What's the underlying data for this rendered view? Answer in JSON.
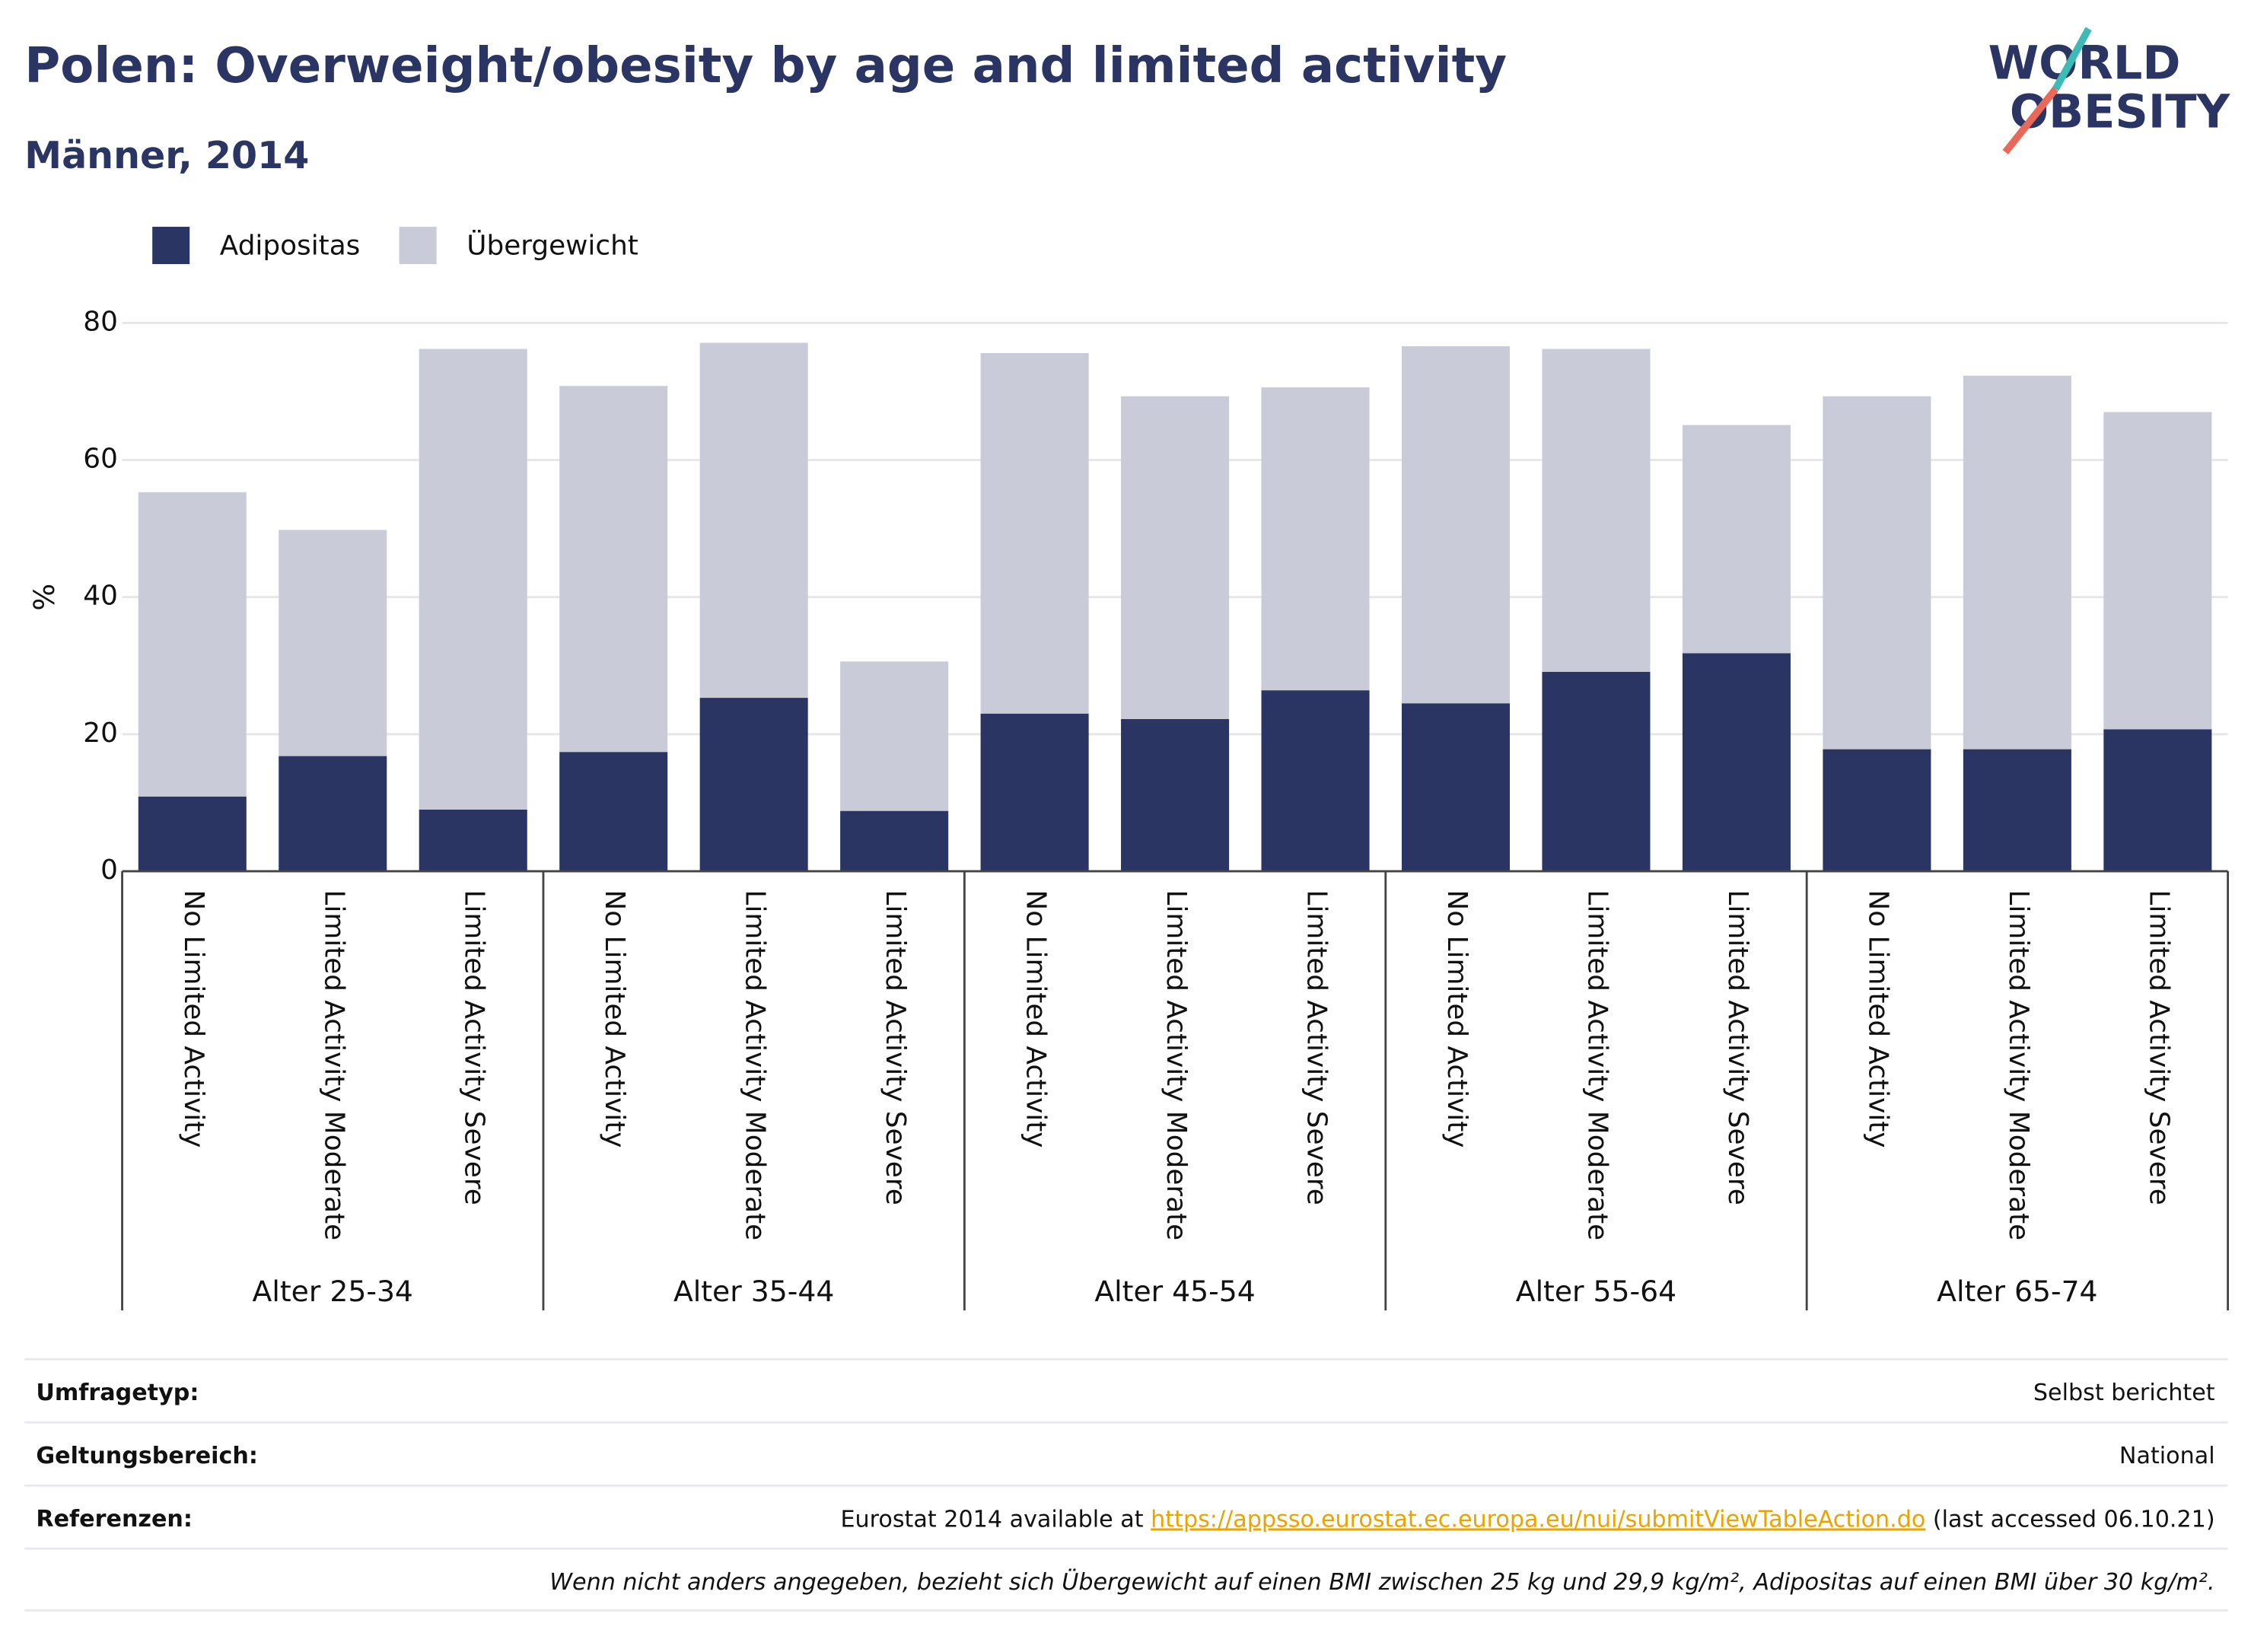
{
  "chart_data": {
    "type": "stacked_bar",
    "title": "Polen: Overweight/obesity by age and limited activity",
    "subtitle": "Männer, 2014",
    "y_label": "%",
    "categories": [
      "No Limited Activity",
      "Limited Activity Moderate",
      "Limited Activity Severe",
      "No Limited Activity",
      "Limited Activity Moderate",
      "Limited Activity Severe",
      "No Limited Activity",
      "Limited Activity Moderate",
      "Limited Activity Severe",
      "No Limited Activity",
      "Limited Activity Moderate",
      "Limited Activity Severe",
      "No Limited Activity",
      "Limited Activity Moderate",
      "Limited Activity Severe"
    ],
    "groups": [
      "Alter 25-34",
      "Alter 35-44",
      "Alter 45-54",
      "Alter 55-64",
      "Alter 65-74"
    ],
    "series": [
      {
        "name": "Adipositas",
        "color": "#2a3563",
        "values": [
          10.9,
          16.8,
          9.0,
          17.4,
          25.3,
          8.8,
          23.0,
          22.2,
          26.4,
          24.5,
          29.1,
          31.8,
          17.8,
          17.8,
          20.7
        ]
      },
      {
        "name": "Übergewicht",
        "color": "#c9cbd8",
        "values": [
          44.4,
          33.0,
          67.2,
          53.4,
          51.8,
          21.8,
          52.6,
          47.1,
          44.2,
          52.1,
          47.1,
          33.3,
          51.5,
          54.5,
          46.3
        ]
      }
    ],
    "ylim": [
      0,
      80
    ],
    "yticks": [
      0,
      20,
      40,
      60,
      80
    ],
    "grid": true,
    "legend": "top-left"
  },
  "logo": {
    "line1": "WORLD",
    "line2": "OBESITY"
  },
  "info_table": {
    "rows": [
      {
        "label": "Umfragetyp:",
        "value": "Selbst berichtet"
      },
      {
        "label": "Geltungsbereich:",
        "value": "National"
      },
      {
        "label": "Referenzen:",
        "value_before": "Eurostat 2014 available at ",
        "link": "https://appsso.eurostat.ec.europa.eu/nui/submitViewTableAction.do",
        "value_after": " (last accessed 06.10.21)"
      }
    ],
    "note": "Wenn nicht anders angegeben, bezieht sich Übergewicht auf einen BMI zwischen 25 kg und 29,9 kg/m², Adipositas auf einen BMI über 30 kg/m²."
  }
}
